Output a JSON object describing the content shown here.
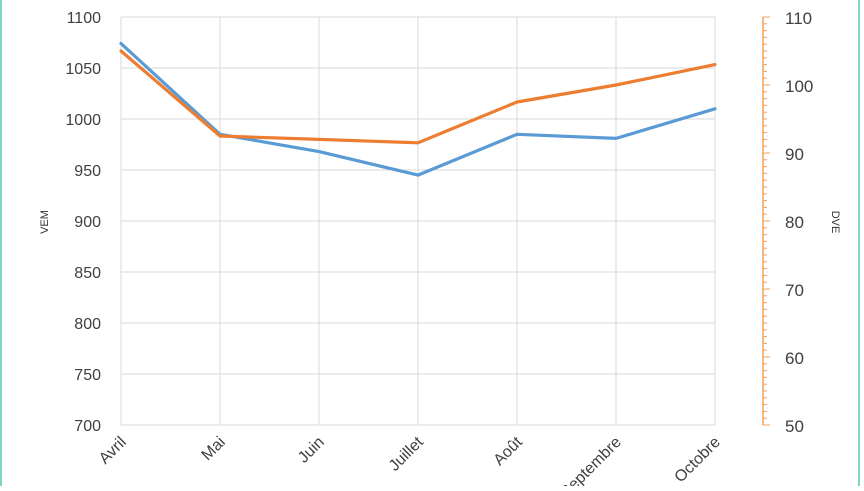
{
  "chart_data": {
    "type": "line",
    "title": "",
    "categories": [
      "Avril",
      "Mai",
      "Juin",
      "Juillet",
      "Août",
      "Septembre",
      "Octobre"
    ],
    "xlabel": "",
    "ylabel": "VEM",
    "y2label": "DVE",
    "ylim": [
      700,
      1100
    ],
    "yticks": [
      700,
      750,
      800,
      850,
      900,
      950,
      1000,
      1050,
      1100
    ],
    "y2lim": [
      50,
      110
    ],
    "y2ticks": [
      50,
      60,
      70,
      80,
      90,
      100,
      110
    ],
    "grid": true,
    "legend": "none",
    "series": [
      {
        "axis": "left",
        "color": "#5b9bd5",
        "values": [
          1074,
          985,
          968,
          945,
          985,
          981,
          1010
        ]
      },
      {
        "axis": "right",
        "color": "#ed7d31",
        "values": [
          105,
          92.5,
          92,
          91.5,
          97.5,
          100,
          103
        ]
      }
    ],
    "right_axis_color": "#f5a05a"
  }
}
